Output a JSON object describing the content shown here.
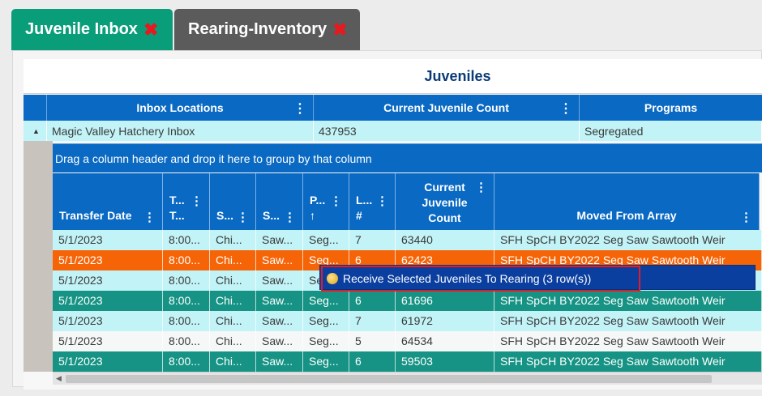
{
  "tabs": [
    {
      "label": "Juvenile Inbox",
      "close": "✖"
    },
    {
      "label": "Rearing-Inventory",
      "close": "✖"
    }
  ],
  "panel": {
    "title": "Juveniles"
  },
  "master": {
    "headers": [
      "Inbox Locations",
      "Current Juvenile Count",
      "Programs"
    ],
    "expander": "▲",
    "row": {
      "location": "Magic Valley Hatchery Inbox",
      "count": "437953",
      "program": "Segregated"
    }
  },
  "detail": {
    "group_hint": "Drag a column header and drop it here to group by that column",
    "headers": {
      "transfer_date": "Transfer Date",
      "col2": [
        "T...",
        "T..."
      ],
      "col3": "S...",
      "col4": "S...",
      "col5": [
        "P...",
        "↑"
      ],
      "col6": [
        "L...",
        "#"
      ],
      "current_count": [
        "Current",
        "Juvenile",
        "Count"
      ],
      "moved_from": "Moved From Array"
    },
    "rows": [
      {
        "date": "5/1/2023",
        "time": "8:00...",
        "s1": "Chi...",
        "s2": "Saw...",
        "p": "Seg...",
        "l": "7",
        "count": "63440",
        "moved": "SFH SpCH BY2022 Seg Saw Sawtooth Weir"
      },
      {
        "date": "5/1/2023",
        "time": "8:00...",
        "s1": "Chi...",
        "s2": "Saw...",
        "p": "Seg...",
        "l": "6",
        "count": "62423",
        "moved": "SFH SpCH BY2022 Seg Saw Sawtooth Weir"
      },
      {
        "date": "5/1/2023",
        "time": "8:00...",
        "s1": "Chi...",
        "s2": "Saw...",
        "p": "Se",
        "l": "",
        "count": "",
        "moved": ""
      },
      {
        "date": "5/1/2023",
        "time": "8:00...",
        "s1": "Chi...",
        "s2": "Saw...",
        "p": "Seg...",
        "l": "6",
        "count": "61696",
        "moved": "SFH SpCH BY2022 Seg Saw Sawtooth Weir"
      },
      {
        "date": "5/1/2023",
        "time": "8:00...",
        "s1": "Chi...",
        "s2": "Saw...",
        "p": "Seg...",
        "l": "7",
        "count": "61972",
        "moved": "SFH SpCH BY2022 Seg Saw Sawtooth Weir"
      },
      {
        "date": "5/1/2023",
        "time": "8:00...",
        "s1": "Chi...",
        "s2": "Saw...",
        "p": "Seg...",
        "l": "5",
        "count": "64534",
        "moved": "SFH SpCH BY2022 Seg Saw Sawtooth Weir"
      },
      {
        "date": "5/1/2023",
        "time": "8:00...",
        "s1": "Chi...",
        "s2": "Saw...",
        "p": "Seg...",
        "l": "6",
        "count": "59503",
        "moved": "SFH SpCH BY2022 Seg Saw Sawtooth Weir"
      }
    ]
  },
  "context_menu": {
    "item": "Receive Selected Juveniles To Rearing (3 row(s))",
    "icon": "receive-icon"
  },
  "kebab": "⋮",
  "scroll_arrow": "◀",
  "colors": {
    "tab_active": "#0a9d7a",
    "tab_inactive": "#5b5b5b",
    "header_blue": "#0969c3",
    "row_light": "#c2f3f7",
    "row_teal": "#169384",
    "row_orange": "#f56508",
    "menu_blue": "#0a3fa0",
    "highlight_red": "#e01e28"
  }
}
